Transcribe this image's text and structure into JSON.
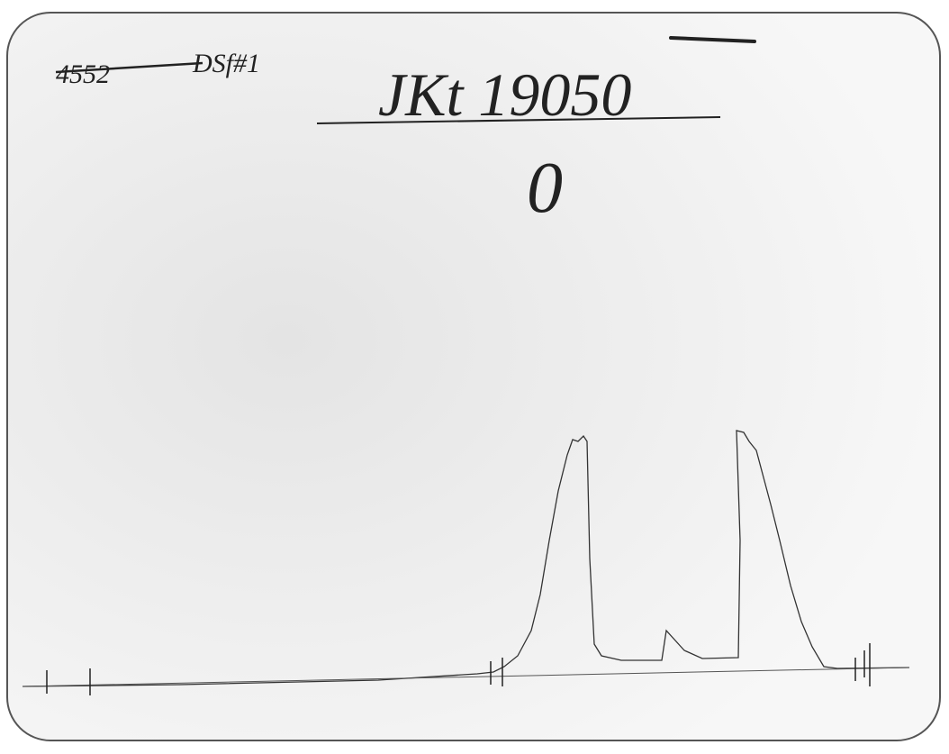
{
  "notes": {
    "code": "4552",
    "label": "DSf#1"
  },
  "title": "JKt 19050",
  "subtitle": "0"
}
